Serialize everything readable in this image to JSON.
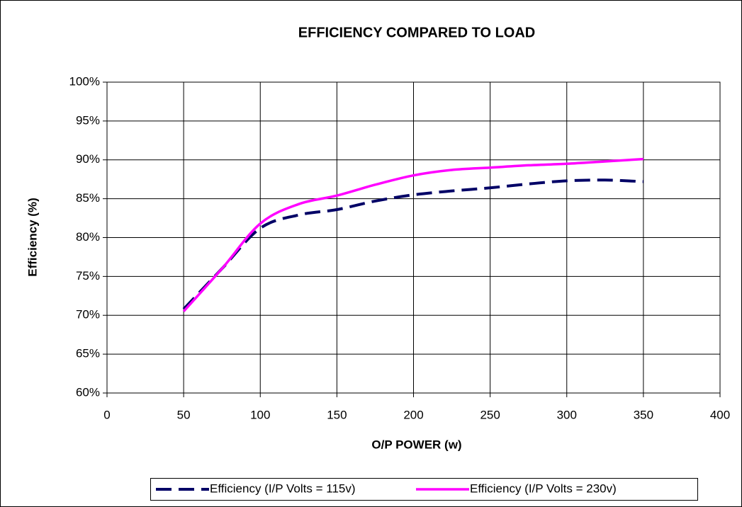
{
  "chart_data": {
    "type": "line",
    "title": "EFFICIENCY COMPARED TO LOAD",
    "x_label": "O/P POWER (w)",
    "y_label": "Efficiency (%)",
    "x": [
      50,
      75,
      100,
      125,
      150,
      175,
      200,
      225,
      250,
      275,
      300,
      325,
      350
    ],
    "series": [
      {
        "name": "Efficiency (I/P Volts = 115v)",
        "color": "#000066",
        "dash": true,
        "values": [
          70.8,
          76,
          81.2,
          82.9,
          83.6,
          84.7,
          85.5,
          86,
          86.4,
          86.9,
          87.3,
          87.4,
          87.2
        ]
      },
      {
        "name": "Efficiency (I/P Volts = 230v)",
        "color": "#ff00ff",
        "dash": false,
        "values": [
          70.5,
          76,
          81.8,
          84.3,
          85.4,
          86.8,
          88,
          88.7,
          89,
          89.3,
          89.5,
          89.8,
          90.1
        ]
      }
    ],
    "xlim": [
      0,
      400
    ],
    "xticks": [
      0,
      50,
      100,
      150,
      200,
      250,
      300,
      350,
      400
    ],
    "ylim": [
      60,
      100
    ],
    "yticks": [
      {
        "value": 60,
        "label": "60%"
      },
      {
        "value": 65,
        "label": "65%"
      },
      {
        "value": 70,
        "label": "70%"
      },
      {
        "value": 75,
        "label": "75%"
      },
      {
        "value": 80,
        "label": "80%"
      },
      {
        "value": 85,
        "label": "85%"
      },
      {
        "value": 90,
        "label": "90%"
      },
      {
        "value": 95,
        "label": "95%"
      },
      {
        "value": 100,
        "label": "100%"
      }
    ],
    "grid": true,
    "legend": "bottom"
  }
}
